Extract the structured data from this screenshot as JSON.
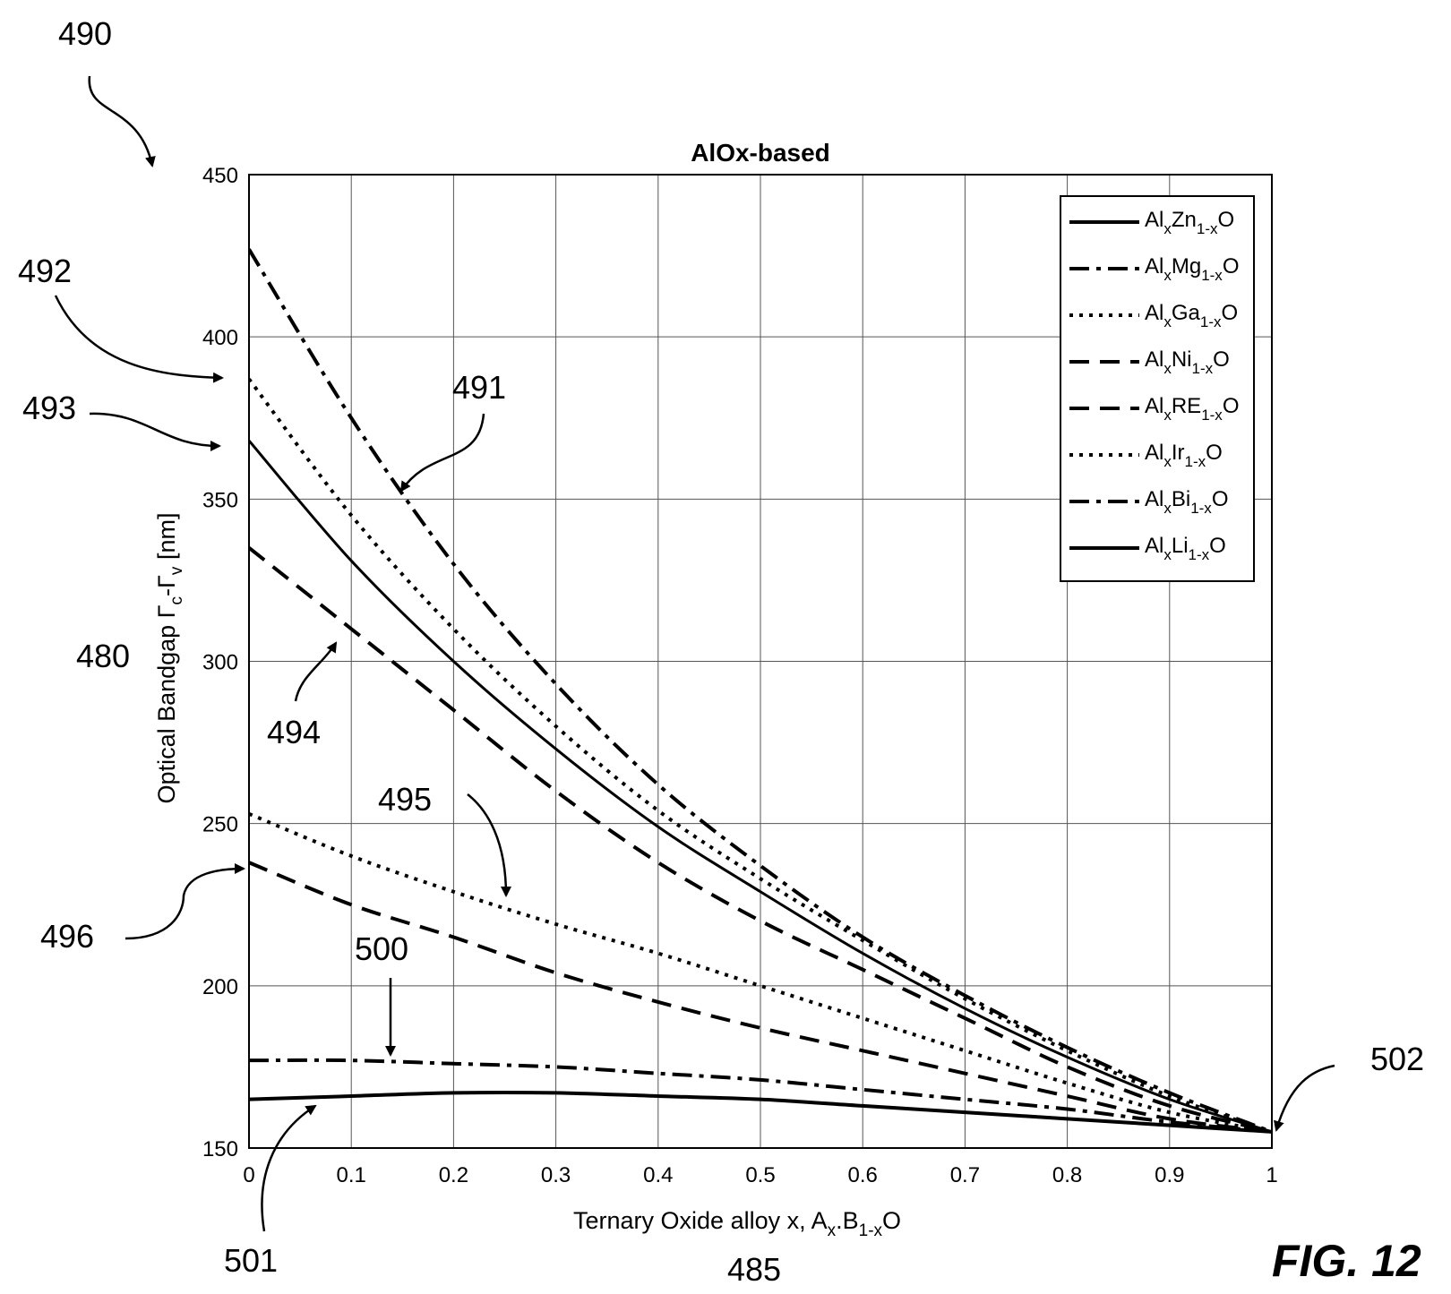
{
  "figure": {
    "ref_number": "490",
    "fig_label": "FIG. 12"
  },
  "chart_data": {
    "type": "line",
    "title": "AlOx-based",
    "xlabel": "Ternary Oxide alloy x,  A",
    "xlabel_sub_x": "x",
    "xlabel_mid": ".B",
    "xlabel_sub_1x": "1-x",
    "xlabel_end": "O",
    "ylabel": "Optical Bandgap Γ",
    "ylabel_sub_c": "c",
    "ylabel_mid": "-Γ",
    "ylabel_sub_v": "v",
    "ylabel_end": " [nm]",
    "xlim": [
      0,
      1
    ],
    "ylim": [
      150,
      450
    ],
    "grid": true,
    "legend_position": "top-right",
    "x_ticks": [
      "0",
      "0.1",
      "0.2",
      "0.3",
      "0.4",
      "0.5",
      "0.6",
      "0.7",
      "0.8",
      "0.9",
      "1"
    ],
    "y_ticks": [
      "150",
      "200",
      "250",
      "300",
      "350",
      "400",
      "450"
    ],
    "x": [
      0,
      0.1,
      0.2,
      0.3,
      0.4,
      0.5,
      0.6,
      0.7,
      0.8,
      0.9,
      1.0
    ],
    "series": [
      {
        "name_base": "Al",
        "name_sub1": "x",
        "name_elem": "Zn",
        "name_sub2": "1-x",
        "name_end": "O",
        "style": "solid",
        "width": 4,
        "values": [
          165,
          166,
          167,
          167,
          166,
          165,
          163,
          161,
          159,
          157,
          155
        ]
      },
      {
        "name_base": "Al",
        "name_sub1": "x",
        "name_elem": "Mg",
        "name_sub2": "1-x",
        "name_end": "O",
        "style": "dashdot",
        "width": 4,
        "values": [
          177,
          177,
          176,
          175,
          173,
          171,
          168,
          165,
          162,
          158,
          155
        ]
      },
      {
        "name_base": "Al",
        "name_sub1": "x",
        "name_elem": "Ga",
        "name_sub2": "1-x",
        "name_end": "O",
        "style": "dotted",
        "width": 4,
        "values": [
          253,
          240,
          229,
          219,
          210,
          200,
          190,
          180,
          170,
          161,
          155
        ]
      },
      {
        "name_base": "Al",
        "name_sub1": "x",
        "name_elem": "Ni",
        "name_sub2": "1-x",
        "name_end": "O",
        "style": "dashed",
        "width": 4,
        "values": [
          335,
          310,
          285,
          260,
          238,
          220,
          205,
          190,
          175,
          163,
          155
        ]
      },
      {
        "name_base": "Al",
        "name_sub1": "x",
        "name_elem": "RE",
        "name_sub2": "1-x",
        "name_end": "O",
        "style": "dashed",
        "width": 4,
        "values": [
          238,
          225,
          215,
          204,
          195,
          187,
          180,
          173,
          166,
          159,
          155
        ]
      },
      {
        "name_base": "Al",
        "name_sub1": "x",
        "name_elem": "Ir",
        "name_sub2": "1-x",
        "name_end": "O",
        "style": "dotted",
        "width": 4,
        "values": [
          387,
          345,
          310,
          280,
          254,
          233,
          214,
          196,
          180,
          166,
          155
        ]
      },
      {
        "name_base": "Al",
        "name_sub1": "x",
        "name_elem": "Bi",
        "name_sub2": "1-x",
        "name_end": "O",
        "style": "dashdot",
        "width": 4,
        "values": [
          427,
          375,
          330,
          293,
          262,
          237,
          215,
          197,
          181,
          167,
          155
        ]
      },
      {
        "name_base": "Al",
        "name_sub1": "x",
        "name_elem": "Li",
        "name_sub2": "1-x",
        "name_end": "O",
        "style": "solid",
        "width": 3,
        "values": [
          368,
          331,
          300,
          273,
          249,
          229,
          210,
          193,
          178,
          165,
          155
        ]
      }
    ],
    "annotations": [
      {
        "label": "491",
        "x": 0.15,
        "y": 352
      },
      {
        "label": "492",
        "x": 0.0,
        "y": 389
      },
      {
        "label": "493",
        "x": 0.0,
        "y": 368
      },
      {
        "label": "494",
        "x": 0.09,
        "y": 310
      },
      {
        "label": "495",
        "x": 0.25,
        "y": 227
      },
      {
        "label": "496",
        "x": 0.0,
        "y": 238
      },
      {
        "label": "500",
        "x": 0.13,
        "y": 177
      },
      {
        "label": "501",
        "x": 0.06,
        "y": 166
      },
      {
        "label": "502",
        "x": 1.0,
        "y": 155
      },
      {
        "label": "480"
      },
      {
        "label": "485"
      }
    ]
  }
}
